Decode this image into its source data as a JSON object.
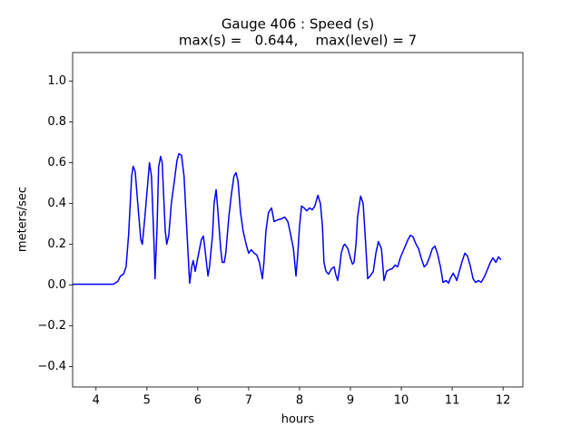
{
  "chart_data": {
    "type": "line",
    "title": "Gauge 406 : Speed (s)",
    "subtitle": "max(s) =   0.644,    max(level) = 7",
    "x_label": "hours",
    "y_label": "meters/sec",
    "color": "#0000ff",
    "xlim": [
      3.54,
      12.39
    ],
    "ylim": [
      -0.5,
      1.14
    ],
    "xticks": [
      4,
      5,
      6,
      7,
      8,
      9,
      10,
      11,
      12
    ],
    "yticks": [
      {
        "value": -0.4,
        "label": "−0.4"
      },
      {
        "value": -0.2,
        "label": "−0.2"
      },
      {
        "value": 0,
        "label": "0.0"
      },
      0.2,
      0.4,
      0.6,
      0.8,
      {
        "value": 1,
        "label": "1.0"
      }
    ],
    "x": [
      3.54,
      3.89,
      4.34,
      4.43,
      4.48,
      4.54,
      4.59,
      4.64,
      4.7,
      4.73,
      4.77,
      4.82,
      4.88,
      4.91,
      4.96,
      5.02,
      5.05,
      5.09,
      5.14,
      5.16,
      5.2,
      5.23,
      5.27,
      5.3,
      5.36,
      5.39,
      5.43,
      5.48,
      5.54,
      5.59,
      5.63,
      5.68,
      5.73,
      5.79,
      5.84,
      5.88,
      5.91,
      5.95,
      6.0,
      6.07,
      6.11,
      6.14,
      6.2,
      6.23,
      6.29,
      6.32,
      6.36,
      6.39,
      6.45,
      6.48,
      6.52,
      6.55,
      6.61,
      6.66,
      6.71,
      6.75,
      6.79,
      6.84,
      6.89,
      6.95,
      7.0,
      7.05,
      7.11,
      7.16,
      7.21,
      7.27,
      7.3,
      7.34,
      7.39,
      7.45,
      7.5,
      7.57,
      7.64,
      7.71,
      7.77,
      7.82,
      7.88,
      7.93,
      7.96,
      8.0,
      8.04,
      8.09,
      8.14,
      8.2,
      8.25,
      8.3,
      8.36,
      8.41,
      8.45,
      8.48,
      8.52,
      8.57,
      8.63,
      8.68,
      8.71,
      8.75,
      8.79,
      8.82,
      8.86,
      8.89,
      8.95,
      9.0,
      9.04,
      9.07,
      9.11,
      9.14,
      9.2,
      9.25,
      9.3,
      9.34,
      9.39,
      9.45,
      9.5,
      9.55,
      9.61,
      9.66,
      9.71,
      9.77,
      9.82,
      9.88,
      9.93,
      9.98,
      10.04,
      10.13,
      10.18,
      10.23,
      10.29,
      10.34,
      10.39,
      10.45,
      10.5,
      10.55,
      10.61,
      10.66,
      10.71,
      10.77,
      10.82,
      10.88,
      10.93,
      10.96,
      11.02,
      11.05,
      11.09,
      11.14,
      11.2,
      11.25,
      11.3,
      11.36,
      11.41,
      11.46,
      11.52,
      11.57,
      11.64,
      11.7,
      11.75,
      11.8,
      11.86,
      11.91,
      11.96
    ],
    "values": [
      0.004,
      0.004,
      0.004,
      0.018,
      0.044,
      0.053,
      0.089,
      0.244,
      0.533,
      0.582,
      0.556,
      0.4,
      0.222,
      0.2,
      0.333,
      0.511,
      0.6,
      0.533,
      0.2,
      0.031,
      0.289,
      0.578,
      0.631,
      0.6,
      0.267,
      0.2,
      0.244,
      0.4,
      0.511,
      0.609,
      0.644,
      0.636,
      0.533,
      0.244,
      0.009,
      0.089,
      0.12,
      0.067,
      0.133,
      0.222,
      0.24,
      0.178,
      0.044,
      0.089,
      0.244,
      0.4,
      0.467,
      0.378,
      0.178,
      0.111,
      0.111,
      0.156,
      0.333,
      0.444,
      0.533,
      0.551,
      0.511,
      0.356,
      0.267,
      0.2,
      0.156,
      0.173,
      0.156,
      0.147,
      0.111,
      0.031,
      0.111,
      0.267,
      0.356,
      0.378,
      0.311,
      0.32,
      0.324,
      0.333,
      0.311,
      0.253,
      0.178,
      0.044,
      0.133,
      0.289,
      0.387,
      0.378,
      0.364,
      0.378,
      0.369,
      0.387,
      0.44,
      0.4,
      0.289,
      0.111,
      0.067,
      0.053,
      0.08,
      0.089,
      0.053,
      0.022,
      0.089,
      0.156,
      0.191,
      0.2,
      0.178,
      0.133,
      0.102,
      0.111,
      0.2,
      0.333,
      0.436,
      0.4,
      0.2,
      0.031,
      0.044,
      0.067,
      0.156,
      0.213,
      0.178,
      0.022,
      0.067,
      0.076,
      0.08,
      0.098,
      0.089,
      0.133,
      0.169,
      0.222,
      0.244,
      0.236,
      0.2,
      0.178,
      0.133,
      0.089,
      0.102,
      0.133,
      0.178,
      0.191,
      0.156,
      0.089,
      0.013,
      0.022,
      0.009,
      0.031,
      0.058,
      0.044,
      0.022,
      0.067,
      0.12,
      0.156,
      0.142,
      0.089,
      0.031,
      0.013,
      0.022,
      0.013,
      0.044,
      0.08,
      0.111,
      0.133,
      0.111,
      0.138,
      0.124
    ]
  }
}
